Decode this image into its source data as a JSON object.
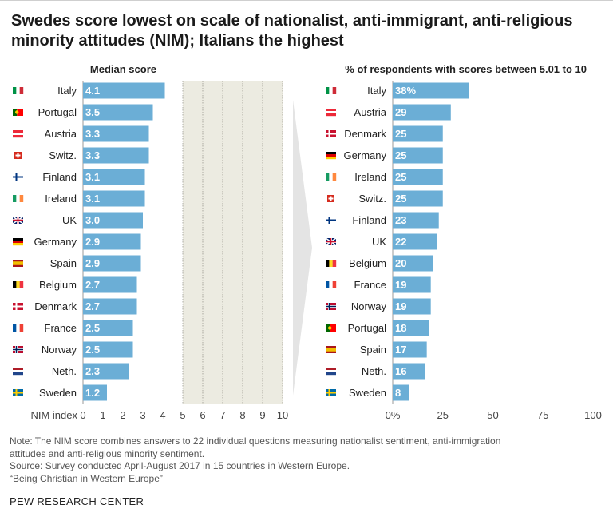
{
  "title": "Swedes score lowest on scale of nationalist, anti-immigrant, anti-religious minority attitudes (NIM); Italians the highest",
  "chart_data": [
    {
      "type": "bar",
      "orientation": "horizontal",
      "title": "Median score",
      "xlabel": "NIM index",
      "xlim": [
        0,
        10
      ],
      "xticks": [
        "0",
        "1",
        "2",
        "3",
        "4",
        "5",
        "6",
        "7",
        "8",
        "9",
        "10"
      ],
      "shaded_range": [
        5,
        10
      ],
      "categories": [
        "Italy",
        "Portugal",
        "Austria",
        "Switz.",
        "Finland",
        "Ireland",
        "UK",
        "Germany",
        "Spain",
        "Belgium",
        "Denmark",
        "France",
        "Norway",
        "Neth.",
        "Sweden"
      ],
      "values": [
        4.1,
        3.5,
        3.3,
        3.3,
        3.1,
        3.1,
        3.0,
        2.9,
        2.9,
        2.7,
        2.7,
        2.5,
        2.5,
        2.3,
        1.2
      ],
      "labels": [
        "4.1",
        "3.5",
        "3.3",
        "3.3",
        "3.1",
        "3.1",
        "3.0",
        "2.9",
        "2.9",
        "2.7",
        "2.7",
        "2.5",
        "2.5",
        "2.3",
        "1.2"
      ]
    },
    {
      "type": "bar",
      "orientation": "horizontal",
      "title": "% of respondents with scores between 5.01 to 10",
      "xlim": [
        0,
        100
      ],
      "xticks": [
        "0%",
        "25",
        "50",
        "75",
        "100"
      ],
      "categories": [
        "Italy",
        "Austria",
        "Denmark",
        "Germany",
        "Ireland",
        "Switz.",
        "Finland",
        "UK",
        "Belgium",
        "France",
        "Norway",
        "Portugal",
        "Spain",
        "Neth.",
        "Sweden"
      ],
      "values": [
        38,
        29,
        25,
        25,
        25,
        25,
        23,
        22,
        20,
        19,
        19,
        18,
        17,
        16,
        8
      ],
      "labels": [
        "38%",
        "29",
        "25",
        "25",
        "25",
        "25",
        "23",
        "22",
        "20",
        "19",
        "19",
        "18",
        "17",
        "16",
        "8"
      ]
    }
  ],
  "flags": {
    "Italy": {
      "type": "v",
      "colors": [
        "#009246",
        "#ffffff",
        "#ce2b37"
      ]
    },
    "Portugal": {
      "type": "pt",
      "colors": [
        "#006600",
        "#ff0000",
        "#ffcc00"
      ]
    },
    "Austria": {
      "type": "h",
      "colors": [
        "#ed2939",
        "#ffffff",
        "#ed2939"
      ]
    },
    "Switz.": {
      "type": "cross",
      "colors": [
        "#d52b1e",
        "#ffffff"
      ]
    },
    "Finland": {
      "type": "nordic",
      "colors": [
        "#ffffff",
        "#003580"
      ]
    },
    "Ireland": {
      "type": "v",
      "colors": [
        "#169b62",
        "#ffffff",
        "#ff883e"
      ]
    },
    "UK": {
      "type": "uk",
      "colors": [
        "#012169",
        "#ffffff",
        "#c8102e"
      ]
    },
    "Germany": {
      "type": "h",
      "colors": [
        "#000000",
        "#dd0000",
        "#ffce00"
      ]
    },
    "Spain": {
      "type": "es",
      "colors": [
        "#aa151b",
        "#f1bf00"
      ]
    },
    "Belgium": {
      "type": "v",
      "colors": [
        "#000000",
        "#fdda24",
        "#ef3340"
      ]
    },
    "Denmark": {
      "type": "nordic",
      "colors": [
        "#c8102e",
        "#ffffff"
      ]
    },
    "France": {
      "type": "v",
      "colors": [
        "#0055a4",
        "#ffffff",
        "#ef4135"
      ]
    },
    "Norway": {
      "type": "nordic2",
      "colors": [
        "#ba0c2f",
        "#ffffff",
        "#00205b"
      ]
    },
    "Neth.": {
      "type": "h",
      "colors": [
        "#ae1c28",
        "#ffffff",
        "#21468b"
      ]
    },
    "Sweden": {
      "type": "nordic",
      "colors": [
        "#006aa7",
        "#fecc00"
      ]
    }
  },
  "colors": {
    "bar": "#6baed6",
    "shade": "#ecebe1",
    "arrow": "#e4e4e4",
    "text": "#222222"
  },
  "note_lines": [
    "Note: The NIM score combines answers to 22 individual questions measuring nationalist sentiment, anti-immigration",
    "attitudes and anti-religious minority sentiment.",
    "Source: Survey conducted April-August 2017 in 15 countries in Western Europe.",
    "“Being Christian in Western Europe”"
  ],
  "organization": "PEW RESEARCH CENTER"
}
